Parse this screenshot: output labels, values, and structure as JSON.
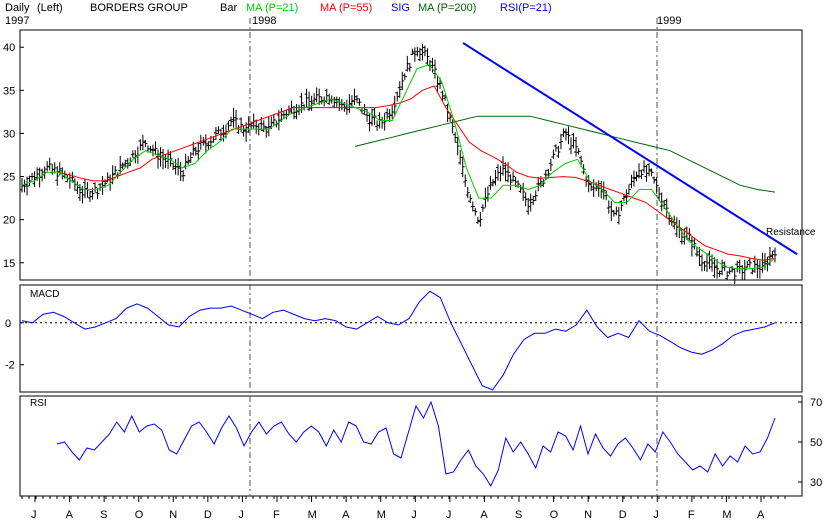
{
  "header": {
    "left": [
      "Daily",
      "(Left)",
      "BORDERS GROUP",
      "Bar"
    ],
    "ma21": "MA (P=21)",
    "ma55": "MA (P=55)",
    "sig": "SIG",
    "ma200": "MA (P=200)",
    "rsi": "RSI(P=21)"
  },
  "years": [
    "1997",
    "1998",
    "1999"
  ],
  "annotation": "Resistance",
  "colors": {
    "price": "#000000",
    "ma21": "#00cc00",
    "ma55": "#ff0000",
    "ma200": "#006600",
    "macd": "#0000ff",
    "rsi": "#0000ff",
    "trendline": "#0000ff",
    "sig": "#0000ff"
  },
  "chart_data": [
    {
      "type": "bar",
      "panel": "price",
      "grid": false,
      "ylim": [
        13,
        42
      ],
      "yticks": [
        15,
        20,
        25,
        30,
        35,
        40
      ],
      "months": [
        "J",
        "A",
        "S",
        "O",
        "N",
        "D",
        "J",
        "F",
        "M",
        "A",
        "M",
        "J",
        "J",
        "A",
        "S",
        "O",
        "N",
        "D",
        "J",
        "F",
        "M",
        "A"
      ],
      "price_close": [
        24,
        25,
        26,
        25.5,
        24.5,
        23,
        23.5,
        24.5,
        26,
        27.5,
        29,
        27.5,
        26.5,
        25.5,
        28,
        29,
        30,
        31.5,
        30.5,
        31,
        30.5,
        32,
        33,
        33.5,
        34,
        34.5,
        33,
        34,
        32,
        31,
        33,
        37,
        40,
        38.5,
        35,
        30,
        24,
        20,
        24,
        26,
        24,
        22,
        24,
        27,
        30,
        28,
        23.5,
        24,
        20,
        23,
        26,
        25,
        22,
        19,
        18,
        15.5,
        14.5,
        14,
        14,
        14.5,
        14.5,
        16.5
      ],
      "ma21": [
        24,
        24.5,
        25.5,
        25.5,
        24.5,
        23.5,
        23.5,
        24,
        25.5,
        27,
        28,
        27.5,
        27,
        26,
        26.5,
        28,
        29,
        30.5,
        30.5,
        30.5,
        30.5,
        31.5,
        32.5,
        33,
        33.5,
        34,
        33.5,
        33,
        32.5,
        31.5,
        31.5,
        34.5,
        37.5,
        38,
        36,
        31.5,
        26,
        22.5,
        22.5,
        24,
        24,
        23.5,
        24,
        25.5,
        26.5,
        27,
        24.5,
        23.5,
        22,
        22,
        23.5,
        23.5,
        21.5,
        19.5,
        17.5,
        16.5,
        15.5,
        14.5,
        14.3,
        14.3,
        14.5,
        15.5
      ],
      "ma55": [
        25.5,
        25.2,
        24.8,
        24.5,
        24.5,
        25,
        25.5,
        26,
        27,
        27.5,
        28,
        28.5,
        29,
        29.5,
        30,
        30.5,
        31,
        31.5,
        32,
        32.5,
        33,
        33,
        33,
        33,
        33,
        33,
        33,
        33,
        33.2,
        33.5,
        34,
        35,
        35.5,
        33,
        31,
        29,
        28,
        27.3,
        26.5,
        25.5,
        25,
        24.8,
        24.9,
        25,
        24.9,
        24.5,
        24,
        23.5,
        23,
        22.5,
        22,
        21,
        20,
        19,
        18,
        17,
        16.5,
        16,
        15.8,
        15.5,
        15.3,
        15.5
      ],
      "ma200": [
        28.5,
        29,
        29.5,
        30,
        30.5,
        31,
        31.5,
        32,
        32,
        32,
        32,
        31.5,
        31,
        30.5,
        30,
        29.5,
        29,
        28.5,
        28,
        27,
        26,
        25,
        24,
        23.5,
        23.2
      ],
      "trendline": {
        "from": [
          40.5
        ],
        "to": [
          16
        ],
        "label": "Resistance"
      }
    },
    {
      "type": "line",
      "panel": "macd",
      "title": "MACD",
      "ylim": [
        -3.3,
        1.8
      ],
      "yticks": [
        0,
        -2
      ],
      "ytick_labels": [
        "0",
        "-2"
      ],
      "values": [
        0.1,
        0,
        0.4,
        0.5,
        0.3,
        0,
        -0.3,
        -0.2,
        0,
        0.2,
        0.7,
        0.9,
        0.7,
        0.3,
        -0.1,
        -0.2,
        0.3,
        0.6,
        0.7,
        0.7,
        0.8,
        0.6,
        0.4,
        0.2,
        0.5,
        0.6,
        0.4,
        0.2,
        0.1,
        0.2,
        0.1,
        -0.2,
        -0.3,
        0,
        0.3,
        0,
        -0.1,
        0.2,
        1,
        1.5,
        1.2,
        0,
        -1,
        -2,
        -3,
        -3.2,
        -2.5,
        -1.5,
        -0.8,
        -0.5,
        -0.5,
        -0.3,
        -0.4,
        -0.1,
        0.6,
        -0.2,
        -0.7,
        -0.5,
        -0.7,
        0.1,
        -0.4,
        -0.6,
        -0.9,
        -1.2,
        -1.4,
        -1.5,
        -1.3,
        -1,
        -0.6,
        -0.4,
        -0.3,
        -0.2,
        0
      ]
    },
    {
      "type": "line",
      "panel": "rsi",
      "title": "RSI",
      "ylim": [
        23,
        73
      ],
      "yticks": [
        70,
        50,
        30
      ],
      "values": [
        49,
        50,
        45,
        41,
        47,
        46,
        50,
        54,
        60,
        55,
        63,
        55,
        58,
        59,
        56,
        46,
        44,
        51,
        58,
        60,
        55,
        49,
        57,
        63,
        57,
        48,
        55,
        60,
        54,
        58,
        60,
        54,
        50,
        55,
        58,
        55,
        48,
        56,
        50,
        60,
        58,
        50,
        49,
        55,
        57,
        44,
        42,
        55,
        68,
        62,
        70,
        58,
        34,
        35,
        41,
        46,
        38,
        34,
        28,
        36,
        52,
        45,
        50,
        44,
        37,
        48,
        45,
        55,
        53,
        46,
        58,
        44,
        54,
        47,
        43,
        49,
        52,
        47,
        41,
        49,
        45,
        55,
        50,
        44,
        40,
        36,
        38,
        35,
        44,
        38,
        43,
        40,
        48,
        44,
        45,
        52,
        62
      ]
    }
  ]
}
